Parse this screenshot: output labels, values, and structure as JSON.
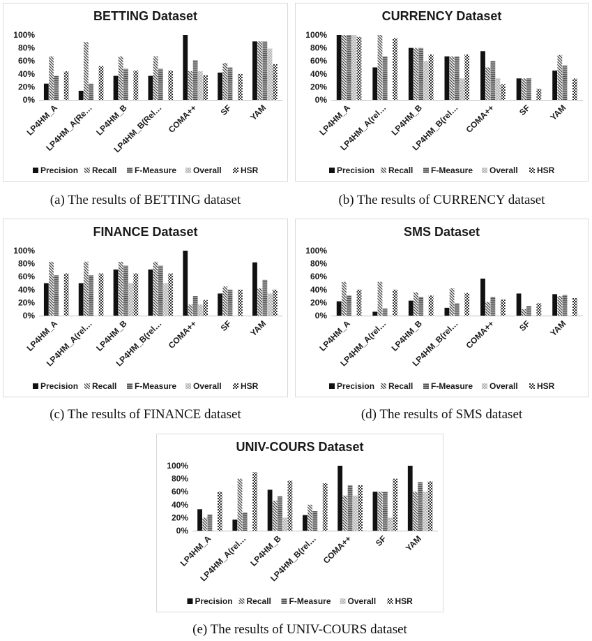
{
  "series_names": [
    "Precision",
    "Recall",
    "F-Measure",
    "Overall",
    "HSR"
  ],
  "colors": {
    "precision": "#111111",
    "recall": "#555555",
    "fmeasure": "#808080",
    "overall": "#bfbfbf",
    "hsr": "#3a3a3a"
  },
  "chart_data": [
    {
      "type": "bar",
      "title": "BETTING Dataset",
      "caption": "(a)  The results of BETTING dataset",
      "categories": [
        "LP4HM_A",
        "LP4HM_A(Re…",
        "LP4HM_B",
        "LP4HM_B(Rel…",
        "COMA++",
        "SF",
        "YAM"
      ],
      "yticks": [
        "0%",
        "20%",
        "40%",
        "60%",
        "80%",
        "100%"
      ],
      "ylim": [
        0,
        1
      ],
      "series": [
        {
          "name": "Precision",
          "values": [
            0.25,
            0.14,
            0.37,
            0.37,
            1.0,
            0.42,
            0.9
          ]
        },
        {
          "name": "Recall",
          "values": [
            0.67,
            0.89,
            0.67,
            0.67,
            0.44,
            0.57,
            0.9
          ]
        },
        {
          "name": "F-Measure",
          "values": [
            0.37,
            0.25,
            0.48,
            0.48,
            0.61,
            0.5,
            0.9
          ]
        },
        {
          "name": "Overall",
          "values": [
            0.0,
            0.0,
            0.0,
            0.0,
            0.44,
            0.0,
            0.79
          ]
        },
        {
          "name": "HSR",
          "values": [
            0.44,
            0.52,
            0.45,
            0.45,
            0.38,
            0.4,
            0.55
          ]
        }
      ],
      "legend": "bottom"
    },
    {
      "type": "bar",
      "title": "CURRENCY Dataset",
      "caption": "(b)  The results of CURRENCY dataset",
      "categories": [
        "LP4HM_A",
        "LP4HM_A(rel…",
        "LP4HM_B",
        "LP4HM_B(rel…",
        "COMA++",
        "SF",
        "YAM"
      ],
      "yticks": [
        "0%",
        "20%",
        "40%",
        "60%",
        "80%",
        "100%"
      ],
      "ylim": [
        0,
        1
      ],
      "series": [
        {
          "name": "Precision",
          "values": [
            1.0,
            0.5,
            0.8,
            0.67,
            0.75,
            0.33,
            0.45
          ]
        },
        {
          "name": "Recall",
          "values": [
            1.0,
            1.0,
            0.8,
            0.67,
            0.5,
            0.33,
            0.69
          ]
        },
        {
          "name": "F-Measure",
          "values": [
            1.0,
            0.67,
            0.8,
            0.67,
            0.6,
            0.33,
            0.53
          ]
        },
        {
          "name": "Overall",
          "values": [
            1.0,
            0.0,
            0.6,
            0.33,
            0.33,
            0.0,
            0.0
          ]
        },
        {
          "name": "HSR",
          "values": [
            0.97,
            0.95,
            0.7,
            0.7,
            0.24,
            0.17,
            0.33
          ]
        }
      ],
      "legend": "bottom"
    },
    {
      "type": "bar",
      "title": "FINANCE Dataset",
      "caption": "(c)  The results of FINANCE dataset",
      "categories": [
        "LP4HM_A",
        "LP4HM_A(rel…",
        "LP4HM_B",
        "LP4HM_B(rel…",
        "COMA++",
        "SF",
        "YAM"
      ],
      "yticks": [
        "0%",
        "20%",
        "40%",
        "60%",
        "80%",
        "100%"
      ],
      "ylim": [
        0,
        1
      ],
      "series": [
        {
          "name": "Precision",
          "values": [
            0.5,
            0.5,
            0.71,
            0.71,
            1.0,
            0.34,
            0.82
          ]
        },
        {
          "name": "Recall",
          "values": [
            0.83,
            0.83,
            0.83,
            0.83,
            0.17,
            0.45,
            0.42
          ]
        },
        {
          "name": "F-Measure",
          "values": [
            0.62,
            0.62,
            0.77,
            0.77,
            0.3,
            0.4,
            0.55
          ]
        },
        {
          "name": "Overall",
          "values": [
            0.0,
            0.0,
            0.5,
            0.5,
            0.17,
            0.0,
            0.34
          ]
        },
        {
          "name": "HSR",
          "values": [
            0.65,
            0.65,
            0.65,
            0.65,
            0.24,
            0.4,
            0.4
          ]
        }
      ],
      "legend": "bottom"
    },
    {
      "type": "bar",
      "title": "SMS Dataset",
      "caption": "(d)  The results of SMS dataset",
      "categories": [
        "LP4HM_A",
        "LP4HM_A(rel…",
        "LP4HM_B",
        "LP4HM_B(rel…",
        "COMA++",
        "SF",
        "YAM"
      ],
      "yticks": [
        "0%",
        "20%",
        "40%",
        "60%",
        "80%",
        "100%"
      ],
      "ylim": [
        0,
        1
      ],
      "series": [
        {
          "name": "Precision",
          "values": [
            0.22,
            0.06,
            0.23,
            0.12,
            0.57,
            0.34,
            0.33
          ]
        },
        {
          "name": "Recall",
          "values": [
            0.52,
            0.52,
            0.36,
            0.42,
            0.21,
            0.1,
            0.3
          ]
        },
        {
          "name": "F-Measure",
          "values": [
            0.31,
            0.11,
            0.29,
            0.19,
            0.29,
            0.15,
            0.32
          ]
        },
        {
          "name": "Overall",
          "values": [
            0.0,
            0.0,
            0.0,
            0.0,
            0.0,
            0.0,
            0.0
          ]
        },
        {
          "name": "HSR",
          "values": [
            0.4,
            0.4,
            0.31,
            0.35,
            0.25,
            0.19,
            0.27
          ]
        }
      ],
      "legend": "bottom"
    },
    {
      "type": "bar",
      "title": "UNIV-COURS Dataset",
      "caption": "(e)  The results of UNIV-COURS dataset",
      "categories": [
        "LP4HM_A",
        "LP4HM_A(rel…",
        "LP4HM_B",
        "LP4HM_B(rel…",
        "COMA++",
        "SF",
        "YAM"
      ],
      "yticks": [
        "0%",
        "20%",
        "40%",
        "60%",
        "80%",
        "100%"
      ],
      "ylim": [
        0,
        1
      ],
      "series": [
        {
          "name": "Precision",
          "values": [
            0.33,
            0.17,
            0.63,
            0.24,
            1.0,
            0.6,
            1.0
          ]
        },
        {
          "name": "Recall",
          "values": [
            0.2,
            0.8,
            0.46,
            0.4,
            0.54,
            0.6,
            0.6
          ]
        },
        {
          "name": "F-Measure",
          "values": [
            0.25,
            0.28,
            0.53,
            0.3,
            0.7,
            0.6,
            0.75
          ]
        },
        {
          "name": "Overall",
          "values": [
            0.0,
            0.0,
            0.2,
            0.0,
            0.54,
            0.2,
            0.6
          ]
        },
        {
          "name": "HSR",
          "values": [
            0.6,
            0.9,
            0.77,
            0.73,
            0.7,
            0.8,
            0.76
          ]
        }
      ],
      "legend": "bottom"
    }
  ]
}
